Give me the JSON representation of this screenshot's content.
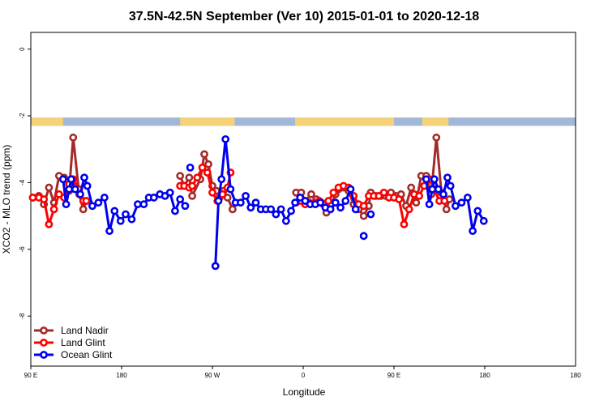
{
  "chart_data": {
    "type": "line",
    "title": "37.5N-42.5N September (Ver 10)   2015-01-01 to 2020-12-18",
    "xlabel": "Longitude",
    "ylabel": "XCO2 - MLO trend (ppm)",
    "xlim": [
      0,
      540
    ],
    "ylim": [
      -9.5,
      0.5
    ],
    "x_ticks": [
      {
        "value": 0,
        "label": "90 E"
      },
      {
        "value": 90,
        "label": "180"
      },
      {
        "value": 180,
        "label": "90 W"
      },
      {
        "value": 270,
        "label": "0"
      },
      {
        "value": 360,
        "label": "90 E"
      },
      {
        "value": 450,
        "label": "180"
      }
    ],
    "y_ticks": [
      {
        "value": 0,
        "label": "0"
      },
      {
        "value": -2,
        "label": "-2"
      },
      {
        "value": -4,
        "label": "-4"
      },
      {
        "value": -6,
        "label": "-6"
      },
      {
        "value": -8,
        "label": "-8"
      }
    ],
    "legend_position": "bottom-left",
    "land_ocean_strip": {
      "y_range": [
        -2.3,
        -2.05
      ],
      "ocean_color": "#a3b8d8",
      "land_color": "#f5d27a",
      "land_segments": [
        [
          0,
          32
        ],
        [
          148,
          202
        ],
        [
          262,
          360
        ],
        [
          388,
          414
        ]
      ]
    },
    "series": [
      {
        "name": "Land Nadir",
        "color": "#a52a2a",
        "segments": [
          [
            [
              2,
              -4.45
            ],
            [
              8,
              -4.4
            ],
            [
              13,
              -4.65
            ],
            [
              18,
              -4.15
            ],
            [
              23,
              -4.6
            ],
            [
              28,
              -3.8
            ],
            [
              33,
              -3.85
            ],
            [
              38,
              -4.25
            ],
            [
              42,
              -2.65
            ],
            [
              48,
              -4.35
            ],
            [
              52,
              -4.8
            ],
            [
              55,
              -4.55
            ]
          ],
          [
            [
              148,
              -3.8
            ],
            [
              152,
              -4.1
            ],
            [
              157,
              -3.85
            ],
            [
              160,
              -4.4
            ],
            [
              168,
              -3.9
            ],
            [
              172,
              -3.15
            ],
            [
              176,
              -3.45
            ],
            [
              180,
              -4.1
            ],
            [
              184,
              -4.25
            ],
            [
              187,
              -4.45
            ],
            [
              191,
              -4.25
            ],
            [
              195,
              -4.45
            ],
            [
              200,
              -4.8
            ]
          ],
          [
            [
              263,
              -4.3
            ],
            [
              268,
              -4.3
            ],
            [
              272,
              -4.55
            ],
            [
              278,
              -4.35
            ],
            [
              283,
              -4.5
            ],
            [
              288,
              -4.6
            ],
            [
              293,
              -4.9
            ],
            [
              298,
              -4.65
            ],
            [
              302,
              -4.35
            ],
            [
              305,
              -4.2
            ],
            [
              310,
              -4.15
            ],
            [
              315,
              -4.25
            ],
            [
              320,
              -4.65
            ],
            [
              325,
              -4.8
            ],
            [
              330,
              -5.0
            ],
            [
              335,
              -4.7
            ],
            [
              337,
              -4.3
            ],
            [
              342,
              -4.4
            ],
            [
              347,
              -4.4
            ],
            [
              352,
              -4.4
            ],
            [
              357,
              -4.3
            ],
            [
              362,
              -4.4
            ],
            [
              367,
              -4.35
            ],
            [
              372,
              -4.7
            ],
            [
              377,
              -4.15
            ],
            [
              382,
              -4.6
            ],
            [
              387,
              -3.8
            ],
            [
              392,
              -3.8
            ],
            [
              397,
              -4.35
            ],
            [
              402,
              -2.65
            ],
            [
              407,
              -4.3
            ],
            [
              412,
              -4.8
            ],
            [
              415,
              -4.5
            ]
          ]
        ]
      },
      {
        "name": "Land Glint",
        "color": "#ff0000",
        "segments": [
          [
            [
              2,
              -4.45
            ],
            [
              8,
              -4.45
            ],
            [
              13,
              -4.5
            ],
            [
              18,
              -5.25
            ],
            [
              23,
              -4.8
            ],
            [
              28,
              -4.35
            ],
            [
              33,
              -4.45
            ],
            [
              38,
              -4.05
            ],
            [
              42,
              -3.9
            ],
            [
              48,
              -4.2
            ],
            [
              52,
              -4.55
            ],
            [
              55,
              -4.55
            ]
          ],
          [
            [
              148,
              -4.1
            ],
            [
              152,
              -4.1
            ],
            [
              157,
              -4.15
            ],
            [
              160,
              -4.1
            ],
            [
              165,
              -3.85
            ],
            [
              170,
              -3.55
            ],
            [
              175,
              -3.7
            ],
            [
              180,
              -4.3
            ],
            [
              185,
              -4.55
            ],
            [
              190,
              -4.35
            ],
            [
              195,
              -4.15
            ],
            [
              198,
              -3.7
            ]
          ],
          [
            [
              263,
              -4.6
            ],
            [
              268,
              -4.55
            ],
            [
              272,
              -4.65
            ],
            [
              276,
              -4.6
            ],
            [
              282,
              -4.6
            ],
            [
              286,
              -4.55
            ],
            [
              290,
              -4.65
            ],
            [
              295,
              -4.55
            ],
            [
              300,
              -4.3
            ],
            [
              305,
              -4.15
            ],
            [
              310,
              -4.1
            ],
            [
              315,
              -4.15
            ],
            [
              320,
              -4.4
            ],
            [
              325,
              -4.65
            ],
            [
              330,
              -4.7
            ],
            [
              335,
              -4.4
            ],
            [
              340,
              -4.4
            ],
            [
              345,
              -4.4
            ],
            [
              350,
              -4.3
            ],
            [
              355,
              -4.45
            ],
            [
              360,
              -4.45
            ],
            [
              365,
              -4.5
            ],
            [
              370,
              -5.25
            ],
            [
              375,
              -4.8
            ],
            [
              380,
              -4.35
            ],
            [
              385,
              -4.4
            ],
            [
              390,
              -4.1
            ],
            [
              395,
              -3.9
            ],
            [
              400,
              -4.2
            ],
            [
              405,
              -4.55
            ],
            [
              410,
              -4.55
            ]
          ]
        ]
      },
      {
        "name": "Ocean Glint",
        "color": "#0000ee",
        "segments": [
          [
            [
              32,
              -3.9
            ],
            [
              35,
              -4.65
            ],
            [
              38,
              -4.2
            ],
            [
              40,
              -3.9
            ],
            [
              44,
              -4.2
            ],
            [
              49,
              -4.35
            ],
            [
              53,
              -3.85
            ],
            [
              56,
              -4.1
            ],
            [
              61,
              -4.7
            ],
            [
              67,
              -4.6
            ],
            [
              73,
              -4.45
            ],
            [
              78,
              -5.45
            ],
            [
              83,
              -4.85
            ],
            [
              89,
              -5.15
            ],
            [
              94,
              -4.95
            ],
            [
              100,
              -5.1
            ],
            [
              106,
              -4.65
            ],
            [
              112,
              -4.65
            ],
            [
              117,
              -4.45
            ],
            [
              122,
              -4.45
            ],
            [
              128,
              -4.35
            ],
            [
              133,
              -4.4
            ],
            [
              138,
              -4.3
            ],
            [
              143,
              -4.85
            ],
            [
              148,
              -4.5
            ],
            [
              153,
              -4.7
            ]
          ],
          [
            [
              158,
              -3.55
            ]
          ],
          [
            [
              183,
              -6.5
            ],
            [
              186,
              -4.55
            ],
            [
              189,
              -3.9
            ],
            [
              193,
              -2.7
            ],
            [
              198,
              -4.2
            ],
            [
              203,
              -4.6
            ],
            [
              208,
              -4.6
            ],
            [
              213,
              -4.4
            ],
            [
              218,
              -4.75
            ],
            [
              223,
              -4.6
            ],
            [
              228,
              -4.8
            ],
            [
              233,
              -4.8
            ],
            [
              238,
              -4.8
            ],
            [
              243,
              -4.95
            ],
            [
              248,
              -4.8
            ],
            [
              253,
              -5.15
            ],
            [
              258,
              -4.85
            ],
            [
              262,
              -4.6
            ],
            [
              267,
              -4.45
            ],
            [
              272,
              -4.55
            ],
            [
              277,
              -4.65
            ],
            [
              282,
              -4.65
            ],
            [
              287,
              -4.6
            ],
            [
              292,
              -4.75
            ],
            [
              297,
              -4.8
            ],
            [
              302,
              -4.6
            ],
            [
              307,
              -4.75
            ],
            [
              312,
              -4.55
            ],
            [
              317,
              -4.2
            ],
            [
              322,
              -4.8
            ]
          ],
          [
            [
              330,
              -5.6
            ]
          ],
          [
            [
              337,
              -4.95
            ]
          ],
          [
            [
              392,
              -3.9
            ],
            [
              395,
              -4.65
            ],
            [
              398,
              -4.2
            ],
            [
              400,
              -3.9
            ],
            [
              404,
              -4.2
            ],
            [
              409,
              -4.35
            ],
            [
              413,
              -3.85
            ],
            [
              416,
              -4.1
            ],
            [
              421,
              -4.7
            ],
            [
              427,
              -4.6
            ],
            [
              433,
              -4.45
            ],
            [
              438,
              -5.45
            ],
            [
              443,
              -4.85
            ],
            [
              449,
              -5.15
            ]
          ]
        ]
      }
    ]
  }
}
